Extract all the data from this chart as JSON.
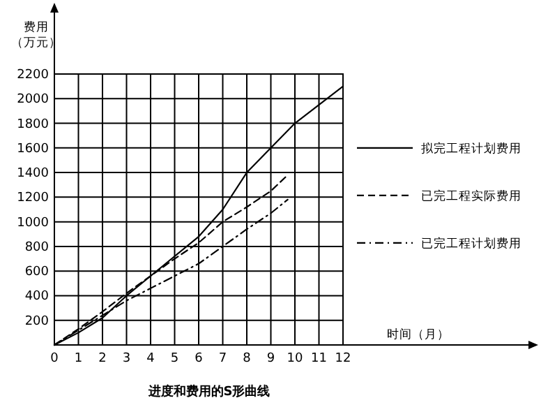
{
  "chart_data": {
    "type": "line",
    "title": "进度和费用的S形曲线",
    "xlabel": "时间（月）",
    "ylabel": "费用（万元）",
    "xlim": [
      0,
      12
    ],
    "ylim": [
      0,
      2200
    ],
    "xticks": [
      0,
      1,
      2,
      3,
      4,
      5,
      6,
      7,
      8,
      9,
      10,
      11,
      12
    ],
    "yticks": [
      200,
      400,
      600,
      800,
      1000,
      1200,
      1400,
      1600,
      1800,
      2000,
      2200
    ],
    "grid": true,
    "legend": "right",
    "marker": "none",
    "series": [
      {
        "name": "拟完工程计划费用",
        "color": "#000000",
        "line_style": "solid",
        "x": [
          0,
          1,
          2,
          3,
          4,
          5,
          6,
          7,
          8,
          9,
          10,
          11,
          12
        ],
        "values": [
          0,
          100,
          220,
          400,
          560,
          720,
          880,
          1100,
          1400,
          1600,
          1800,
          1950,
          2100
        ]
      },
      {
        "name": "已完工程实际费用",
        "color": "#000000",
        "line_style": "dashed",
        "x": [
          0,
          1,
          2,
          3,
          4,
          5,
          6,
          7,
          8,
          9,
          9.7
        ],
        "values": [
          0,
          130,
          270,
          420,
          560,
          700,
          830,
          1000,
          1120,
          1250,
          1380
        ]
      },
      {
        "name": "已完工程计划费用",
        "color": "#000000",
        "line_style": "dashdot",
        "x": [
          0,
          1,
          2,
          3,
          4,
          5,
          6,
          7,
          8,
          9,
          9.7
        ],
        "values": [
          0,
          120,
          240,
          360,
          460,
          560,
          660,
          800,
          940,
          1070,
          1180
        ]
      }
    ]
  }
}
